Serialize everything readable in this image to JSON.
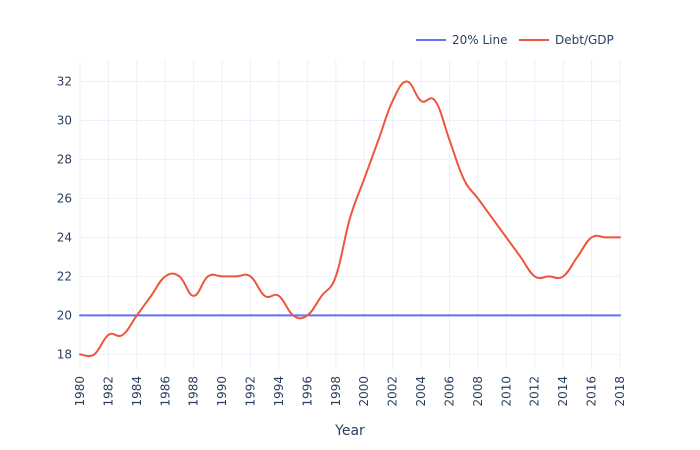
{
  "chart_data": {
    "type": "line",
    "title": "",
    "xlabel": "Year",
    "ylabel": "",
    "xlim": [
      1980,
      2018
    ],
    "ylim": [
      17.2,
      33.1
    ],
    "x_ticks": [
      1980,
      1982,
      1984,
      1986,
      1988,
      1990,
      1992,
      1994,
      1996,
      1998,
      2000,
      2002,
      2004,
      2006,
      2008,
      2010,
      2012,
      2014,
      2016,
      2018
    ],
    "y_ticks": [
      18,
      20,
      22,
      24,
      26,
      28,
      30,
      32
    ],
    "grid": true,
    "legend_position": "top-right",
    "series": [
      {
        "name": "20% Line",
        "color": "#636efa",
        "x": [
          1980,
          2018
        ],
        "y": [
          20,
          20
        ]
      },
      {
        "name": "Debt/GDP",
        "color": "#ef553b",
        "x": [
          1980,
          1981,
          1982,
          1983,
          1984,
          1985,
          1986,
          1987,
          1988,
          1989,
          1990,
          1991,
          1992,
          1993,
          1994,
          1995,
          1996,
          1997,
          1998,
          1999,
          2000,
          2001,
          2002,
          2003,
          2004,
          2005,
          2006,
          2007,
          2008,
          2009,
          2010,
          2011,
          2012,
          2013,
          2014,
          2015,
          2016,
          2017,
          2018
        ],
        "y": [
          18,
          18,
          19,
          19,
          20,
          21,
          22,
          22,
          21,
          22,
          22,
          22,
          22,
          21,
          21,
          20,
          20,
          21,
          22,
          25,
          27,
          29,
          31,
          32,
          31,
          31,
          29,
          27,
          26,
          25,
          24,
          23,
          22,
          22,
          22,
          23,
          24,
          24,
          24
        ]
      }
    ]
  }
}
